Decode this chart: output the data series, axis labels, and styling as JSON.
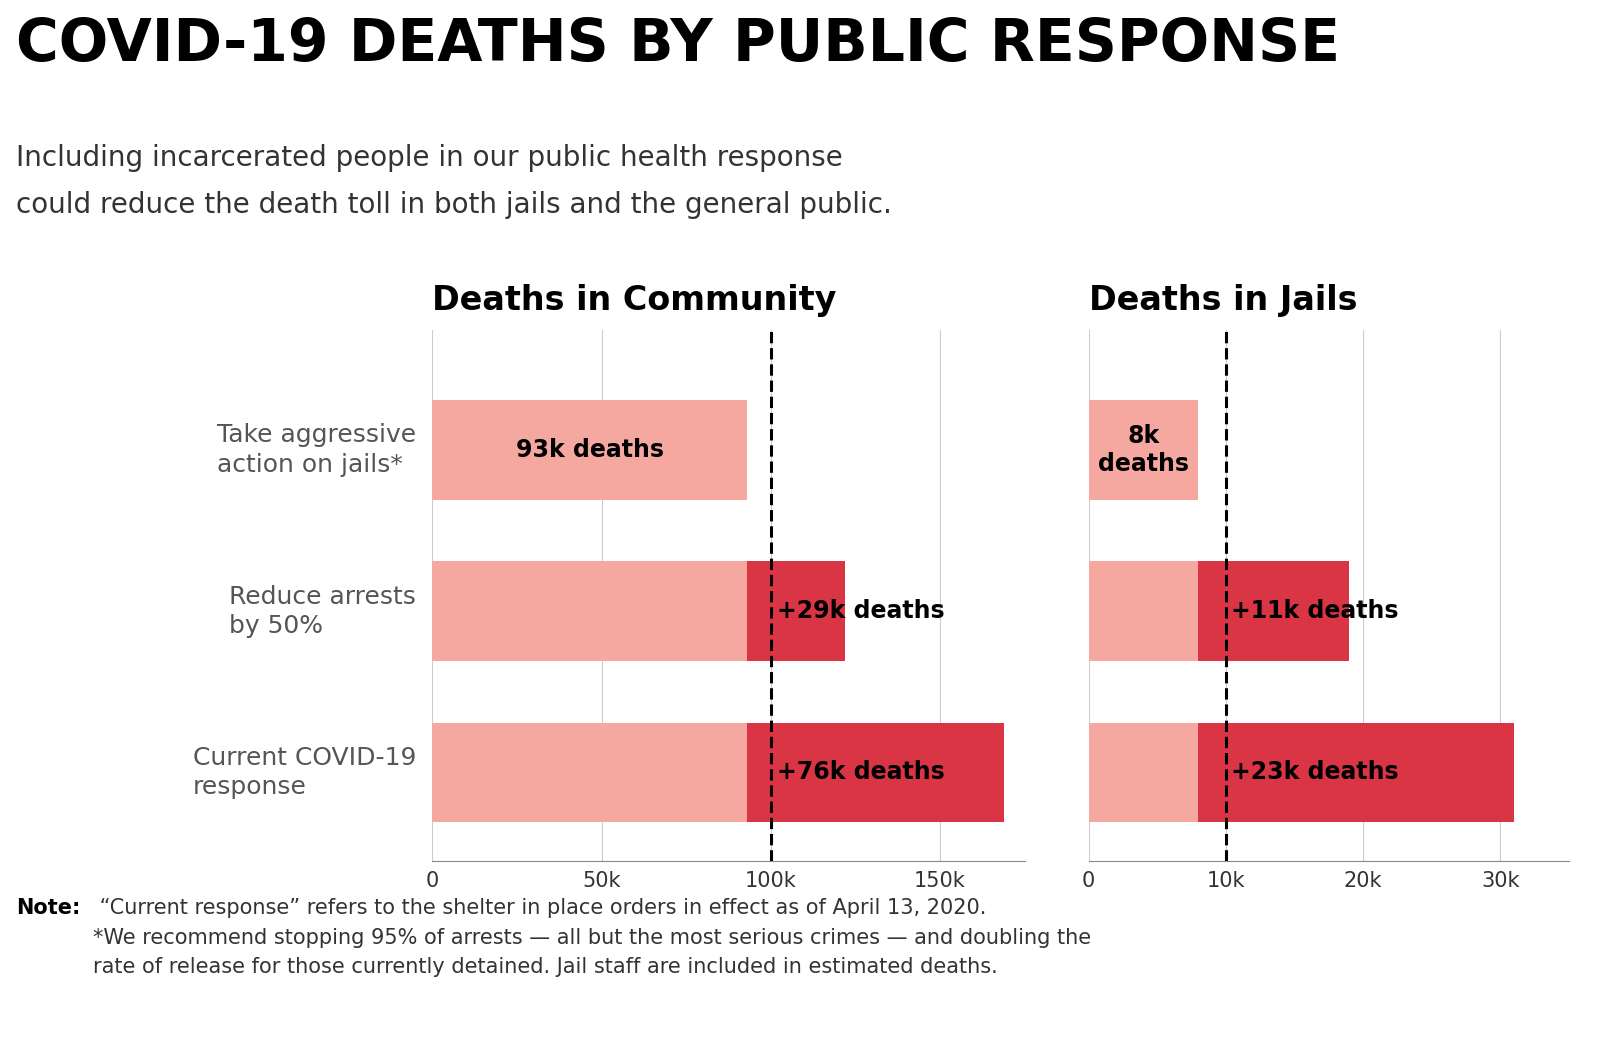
{
  "title": "COVID-19 DEATHS BY PUBLIC RESPONSE",
  "subtitle_line1": "Including incarcerated people in our public health response",
  "subtitle_line2": "could reduce the death toll in both jails and the general public.",
  "note_bold": "Note:",
  "note_rest": " “Current response” refers to the shelter in place orders in effect as of April 13, 2020.\n*We recommend stopping 95% of arrests — all but the most serious crimes — and doubling the\nrate of release for those currently detained. Jail staff are included in estimated deaths.",
  "left_title": "Deaths in Community",
  "right_title": "Deaths in Jails",
  "categories": [
    "Take aggressive\naction on jails*",
    "Reduce arrests\nby 50%",
    "Current COVID-19\nresponse"
  ],
  "community_base": [
    93000,
    93000,
    93000
  ],
  "community_extra": [
    0,
    29000,
    76000
  ],
  "community_labels": [
    "93k deaths",
    "+29k deaths",
    "+76k deaths"
  ],
  "community_label_inside": [
    true,
    false,
    false
  ],
  "community_dashed_line": 100000,
  "community_xlim": [
    0,
    175000
  ],
  "community_xticks": [
    0,
    50000,
    100000,
    150000
  ],
  "community_xticklabels": [
    "0",
    "50k",
    "100k",
    "150k"
  ],
  "jails_base": [
    8000,
    8000,
    8000
  ],
  "jails_extra": [
    0,
    11000,
    23000
  ],
  "jails_labels": [
    "8k\ndeaths",
    "+11k deaths",
    "+23k deaths"
  ],
  "jails_label_inside": [
    true,
    false,
    false
  ],
  "jails_dashed_line": 10000,
  "jails_xlim": [
    0,
    35000
  ],
  "jails_xticks": [
    0,
    10000,
    20000,
    30000
  ],
  "jails_xticklabels": [
    "0",
    "10k",
    "20k",
    "30k"
  ],
  "color_base": "#F4A8A0",
  "color_extra": "#D93544",
  "background": "#FFFFFF",
  "title_fontsize": 42,
  "subtitle_fontsize": 20,
  "section_title_fontsize": 24,
  "bar_label_fontsize": 17,
  "tick_fontsize": 15,
  "note_fontsize": 15,
  "category_fontsize": 18,
  "category_color": "#555555"
}
